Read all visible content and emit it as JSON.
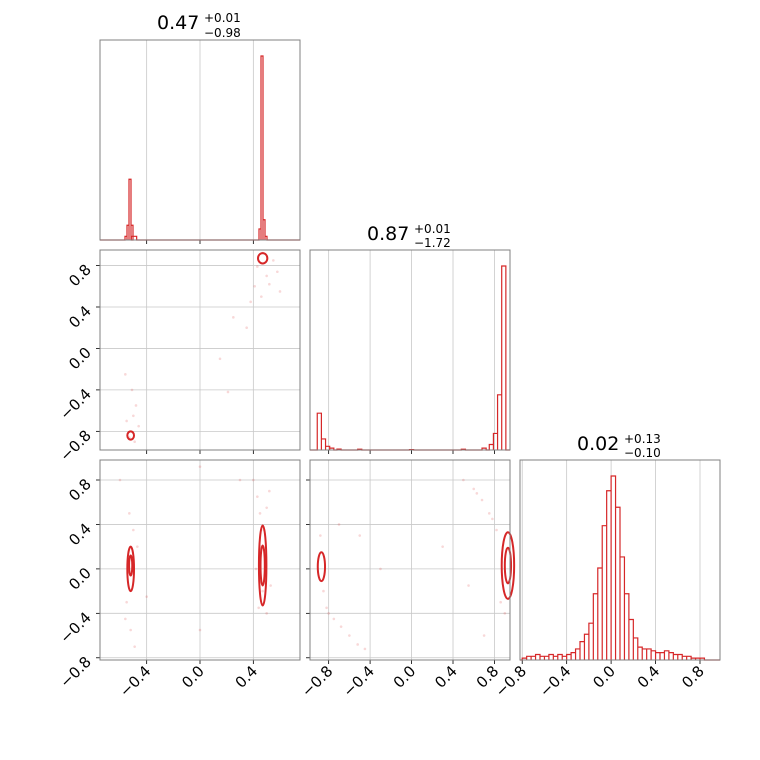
{
  "chart_data": {
    "type": "corner",
    "color": "#d62728",
    "parameters": [
      {
        "id": "p0",
        "range": [
          -0.75,
          0.75
        ],
        "median": "0.47",
        "plus": "+0.01",
        "minus": "−0.98"
      },
      {
        "id": "p1",
        "range": [
          -0.98,
          0.95
        ],
        "median": "0.87",
        "plus": "+0.01",
        "minus": "−1.72"
      },
      {
        "id": "p2",
        "range": [
          -0.82,
          0.98
        ],
        "median": "0.02",
        "plus": "+0.13",
        "minus": "−0.10"
      }
    ],
    "ticks": {
      "p0": [
        {
          "v": -0.4,
          "label": "−0.4"
        },
        {
          "v": 0.0,
          "label": "0.0"
        },
        {
          "v": 0.4,
          "label": "0.4"
        }
      ],
      "p1": [
        {
          "v": -0.8,
          "label": "−0.8"
        },
        {
          "v": -0.4,
          "label": "−0.4"
        },
        {
          "v": 0.0,
          "label": "0.0"
        },
        {
          "v": 0.4,
          "label": "0.4"
        },
        {
          "v": 0.8,
          "label": "0.8"
        }
      ],
      "p2": [
        {
          "v": -0.8,
          "label": "−0.8"
        },
        {
          "v": -0.4,
          "label": "−0.4"
        },
        {
          "v": 0.0,
          "label": "0.0"
        },
        {
          "v": 0.4,
          "label": "0.4"
        },
        {
          "v": 0.8,
          "label": "0.8"
        }
      ]
    },
    "histograms": [
      {
        "param": "p0",
        "x": [
          -0.555,
          -0.54,
          -0.525,
          -0.51,
          -0.495,
          0.45,
          0.465,
          0.48,
          0.495
        ],
        "y": [
          0.02,
          0.08,
          0.33,
          0.08,
          0.02,
          0.06,
          1.0,
          0.11,
          0.02
        ]
      },
      {
        "param": "p1",
        "x": [
          -0.89,
          -0.85,
          -0.81,
          -0.77,
          -0.7,
          -0.5,
          0.0,
          0.5,
          0.7,
          0.77,
          0.81,
          0.85,
          0.89
        ],
        "y": [
          0.2,
          0.06,
          0.02,
          0.01,
          0.005,
          0.004,
          0.002,
          0.004,
          0.01,
          0.03,
          0.09,
          0.3,
          1.0
        ]
      },
      {
        "param": "p2",
        "x": [
          -0.78,
          -0.74,
          -0.7,
          -0.66,
          -0.62,
          -0.58,
          -0.54,
          -0.5,
          -0.46,
          -0.42,
          -0.38,
          -0.34,
          -0.3,
          -0.26,
          -0.22,
          -0.18,
          -0.14,
          -0.1,
          -0.06,
          -0.02,
          0.02,
          0.06,
          0.1,
          0.14,
          0.18,
          0.22,
          0.26,
          0.3,
          0.34,
          0.38,
          0.42,
          0.46,
          0.5,
          0.54,
          0.58,
          0.62,
          0.66,
          0.7,
          0.74,
          0.78,
          0.82
        ],
        "y": [
          0.01,
          0.02,
          0.02,
          0.03,
          0.02,
          0.02,
          0.03,
          0.02,
          0.03,
          0.02,
          0.03,
          0.04,
          0.06,
          0.1,
          0.14,
          0.2,
          0.36,
          0.5,
          0.73,
          0.92,
          1.0,
          0.83,
          0.56,
          0.36,
          0.22,
          0.12,
          0.07,
          0.06,
          0.06,
          0.05,
          0.04,
          0.04,
          0.05,
          0.04,
          0.03,
          0.03,
          0.02,
          0.02,
          0.01,
          0.01,
          0.01
        ]
      }
    ],
    "contours": [
      {
        "x": "p0",
        "y": "p1",
        "levels": [
          {
            "cx": 0.47,
            "cy": 0.87,
            "rx": 0.035,
            "ry": 0.05
          },
          {
            "cx": -0.52,
            "cy": -0.84,
            "rx": 0.025,
            "ry": 0.04
          }
        ]
      },
      {
        "x": "p0",
        "y": "p2",
        "levels": [
          {
            "cx": 0.47,
            "cy": 0.03,
            "rx": 0.028,
            "ry": 0.36
          },
          {
            "cx": 0.47,
            "cy": 0.03,
            "rx": 0.016,
            "ry": 0.18
          },
          {
            "cx": -0.52,
            "cy": 0.0,
            "rx": 0.025,
            "ry": 0.2
          },
          {
            "cx": -0.52,
            "cy": 0.03,
            "rx": 0.012,
            "ry": 0.09
          }
        ]
      },
      {
        "x": "p1",
        "y": "p2",
        "levels": [
          {
            "cx": -0.87,
            "cy": 0.02,
            "rx": 0.035,
            "ry": 0.13
          },
          {
            "cx": 0.93,
            "cy": 0.03,
            "rx": 0.06,
            "ry": 0.3
          },
          {
            "cx": 0.93,
            "cy": 0.03,
            "rx": 0.03,
            "ry": 0.16
          }
        ]
      }
    ],
    "scatter": [
      {
        "x": "p0",
        "y": "p1",
        "points": [
          [
            0.47,
            0.92
          ],
          [
            0.43,
            0.79
          ],
          [
            0.55,
            0.85
          ],
          [
            0.5,
            0.7
          ],
          [
            0.41,
            0.6
          ],
          [
            0.38,
            0.45
          ],
          [
            0.52,
            0.62
          ],
          [
            0.58,
            0.74
          ],
          [
            0.46,
            0.5
          ],
          [
            0.25,
            0.3
          ],
          [
            0.15,
            -0.1
          ],
          [
            0.21,
            -0.42
          ],
          [
            -0.51,
            -0.4
          ],
          [
            -0.48,
            -0.55
          ],
          [
            -0.55,
            -0.7
          ],
          [
            -0.5,
            -0.65
          ],
          [
            -0.53,
            -0.86
          ],
          [
            -0.49,
            -0.9
          ],
          [
            -0.56,
            -0.25
          ],
          [
            -0.46,
            -0.75
          ],
          [
            0.35,
            0.2
          ],
          [
            0.6,
            0.55
          ]
        ]
      },
      {
        "x": "p0",
        "y": "p2",
        "points": [
          [
            0.4,
            0.8
          ],
          [
            0.43,
            0.65
          ],
          [
            0.45,
            0.5
          ],
          [
            0.48,
            0.35
          ],
          [
            0.5,
            0.55
          ],
          [
            0.52,
            0.7
          ],
          [
            0.47,
            -0.2
          ],
          [
            0.44,
            -0.35
          ],
          [
            0.5,
            -0.4
          ],
          [
            0.53,
            -0.15
          ],
          [
            0.46,
            0.2
          ],
          [
            0.42,
            0.0
          ],
          [
            -0.53,
            0.5
          ],
          [
            -0.5,
            0.35
          ],
          [
            -0.55,
            -0.3
          ],
          [
            -0.52,
            -0.55
          ],
          [
            -0.49,
            -0.7
          ],
          [
            -0.56,
            -0.45
          ],
          [
            -0.47,
            0.2
          ],
          [
            -0.6,
            0.8
          ],
          [
            -0.4,
            -0.25
          ],
          [
            0.0,
            0.92
          ],
          [
            0.3,
            0.8
          ],
          [
            0.0,
            -0.55
          ]
        ]
      },
      {
        "x": "p1",
        "y": "p2",
        "points": [
          [
            -0.88,
            0.3
          ],
          [
            -0.85,
            -0.2
          ],
          [
            -0.82,
            -0.35
          ],
          [
            -0.75,
            -0.45
          ],
          [
            -0.68,
            -0.52
          ],
          [
            -0.6,
            -0.6
          ],
          [
            -0.52,
            -0.68
          ],
          [
            -0.45,
            -0.72
          ],
          [
            -0.8,
            -0.4
          ],
          [
            -0.7,
            0.4
          ],
          [
            -0.5,
            0.3
          ],
          [
            0.5,
            0.8
          ],
          [
            0.6,
            0.72
          ],
          [
            0.68,
            0.62
          ],
          [
            0.75,
            0.5
          ],
          [
            0.82,
            0.35
          ],
          [
            0.86,
            -0.3
          ],
          [
            0.9,
            -0.4
          ],
          [
            0.7,
            -0.6
          ],
          [
            0.55,
            -0.15
          ],
          [
            0.3,
            0.2
          ],
          [
            -0.3,
            0.0
          ],
          [
            0.78,
            0.45
          ],
          [
            0.63,
            0.68
          ]
        ]
      }
    ]
  }
}
